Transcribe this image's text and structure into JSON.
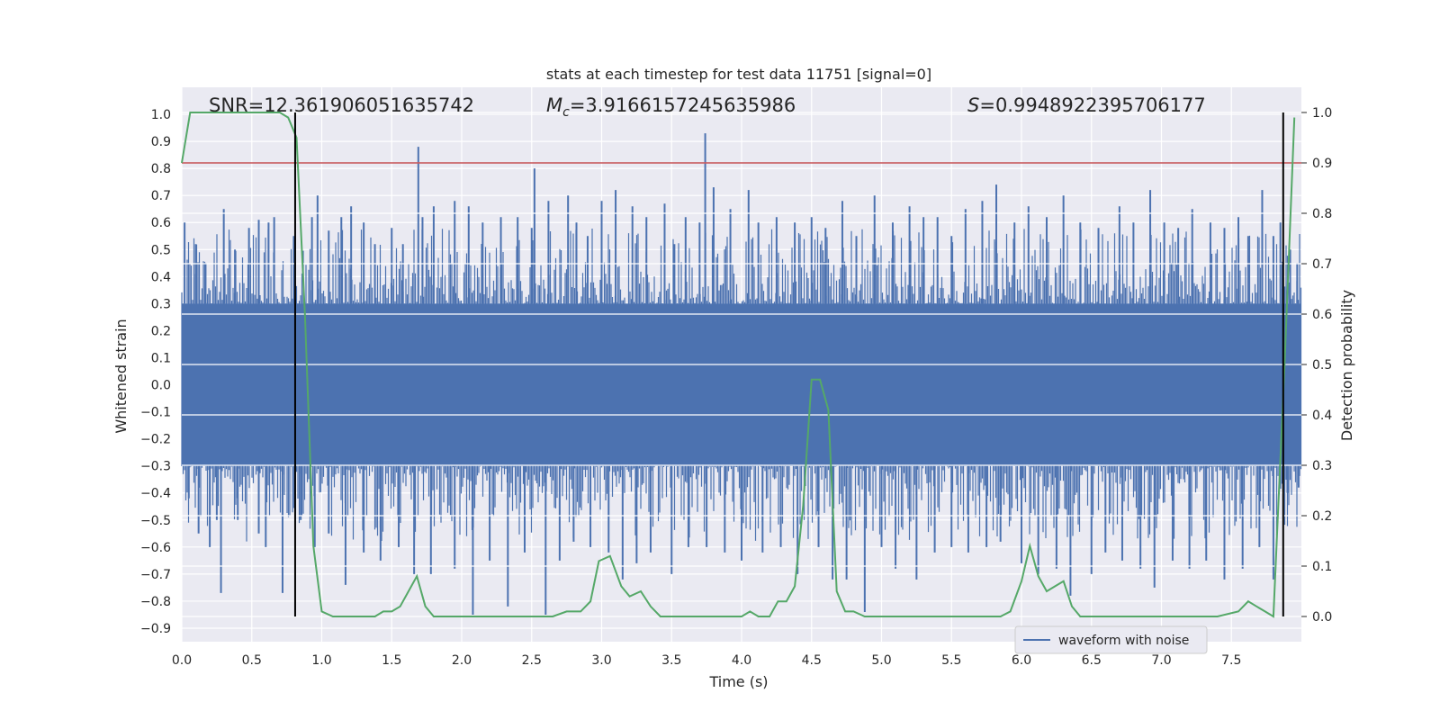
{
  "chart_data": {
    "type": "line",
    "title": "stats at each timestep for test data 11751 [signal=0]",
    "xlabel": "Time (s)",
    "ylabel": "Whitened strain",
    "ylabel_right": "Detection probability",
    "xlim": [
      0.0,
      8.0
    ],
    "ylim": [
      -0.95,
      1.1
    ],
    "ylim_right": [
      -0.05,
      1.05
    ],
    "x_ticks": [
      "0.0",
      "0.5",
      "1.0",
      "1.5",
      "2.0",
      "2.5",
      "3.0",
      "3.5",
      "4.0",
      "4.5",
      "5.0",
      "5.5",
      "6.0",
      "6.5",
      "7.0",
      "7.5"
    ],
    "y_ticks": [
      "1.0",
      "0.9",
      "0.8",
      "0.7",
      "0.6",
      "0.5",
      "0.4",
      "0.3",
      "0.2",
      "0.1",
      "0.0",
      "-0.1",
      "-0.2",
      "-0.3",
      "-0.4",
      "-0.5",
      "-0.6",
      "-0.7",
      "-0.8",
      "-0.9"
    ],
    "y_ticks_right": [
      "1.0",
      "0.9",
      "0.8",
      "0.7",
      "0.6",
      "0.5",
      "0.4",
      "0.3",
      "0.2",
      "0.1",
      "0.0"
    ],
    "annotations": {
      "snr": "SNR=12.361906051635742",
      "mc_symbol": "M",
      "mc_sub": "c",
      "mc_value": "=3.9166157245635986",
      "s_symbol": "S",
      "s_value": "=0.9948922395706177"
    },
    "legend": {
      "label": "waveform with noise",
      "placement": "lower right"
    },
    "threshold": {
      "value_right": 0.9,
      "color": "#c44e52"
    },
    "vertical_lines": [
      0.81,
      7.87
    ],
    "series": [
      {
        "name": "waveform with noise",
        "color": "#4c72b0",
        "axis": "left",
        "band": [
          -0.3,
          0.3
        ],
        "spikes_up": [
          [
            0.02,
            0.6
          ],
          [
            0.1,
            0.52
          ],
          [
            0.17,
            0.45
          ],
          [
            0.3,
            0.65
          ],
          [
            0.38,
            0.5
          ],
          [
            0.48,
            0.58
          ],
          [
            0.55,
            0.61
          ],
          [
            0.62,
            0.6
          ],
          [
            0.66,
            0.62
          ],
          [
            0.8,
            0.55
          ],
          [
            0.93,
            0.62
          ],
          [
            0.97,
            0.7
          ],
          [
            1.05,
            0.57
          ],
          [
            1.14,
            0.62
          ],
          [
            1.21,
            0.66
          ],
          [
            1.3,
            0.6
          ],
          [
            1.38,
            0.52
          ],
          [
            1.5,
            0.58
          ],
          [
            1.58,
            0.52
          ],
          [
            1.69,
            0.88
          ],
          [
            1.72,
            0.62
          ],
          [
            1.8,
            0.66
          ],
          [
            1.95,
            0.68
          ],
          [
            2.05,
            0.66
          ],
          [
            2.15,
            0.6
          ],
          [
            2.28,
            0.62
          ],
          [
            2.4,
            0.62
          ],
          [
            2.5,
            0.58
          ],
          [
            2.52,
            0.8
          ],
          [
            2.62,
            0.68
          ],
          [
            2.76,
            0.7
          ],
          [
            2.82,
            0.6
          ],
          [
            2.9,
            0.55
          ],
          [
            3.0,
            0.68
          ],
          [
            3.1,
            0.72
          ],
          [
            3.22,
            0.66
          ],
          [
            3.32,
            0.62
          ],
          [
            3.45,
            0.67
          ],
          [
            3.52,
            0.52
          ],
          [
            3.6,
            0.62
          ],
          [
            3.7,
            0.6
          ],
          [
            3.74,
            0.93
          ],
          [
            3.8,
            0.73
          ],
          [
            3.92,
            0.65
          ],
          [
            4.05,
            0.72
          ],
          [
            4.12,
            0.6
          ],
          [
            4.25,
            0.62
          ],
          [
            4.38,
            0.6
          ],
          [
            4.5,
            0.62
          ],
          [
            4.6,
            0.58
          ],
          [
            4.72,
            0.68
          ],
          [
            4.82,
            0.55
          ],
          [
            4.95,
            0.7
          ],
          [
            5.08,
            0.6
          ],
          [
            5.2,
            0.66
          ],
          [
            5.3,
            0.62
          ],
          [
            5.4,
            0.62
          ],
          [
            5.5,
            0.55
          ],
          [
            5.6,
            0.65
          ],
          [
            5.72,
            0.68
          ],
          [
            5.82,
            0.74
          ],
          [
            5.95,
            0.6
          ],
          [
            6.05,
            0.66
          ],
          [
            6.18,
            0.62
          ],
          [
            6.3,
            0.7
          ],
          [
            6.42,
            0.6
          ],
          [
            6.55,
            0.58
          ],
          [
            6.7,
            0.66
          ],
          [
            6.8,
            0.6
          ],
          [
            6.92,
            0.72
          ],
          [
            7.02,
            0.6
          ],
          [
            7.12,
            0.58
          ],
          [
            7.22,
            0.65
          ],
          [
            7.35,
            0.6
          ],
          [
            7.45,
            0.58
          ],
          [
            7.55,
            0.62
          ],
          [
            7.62,
            0.55
          ],
          [
            7.72,
            0.72
          ],
          [
            7.8,
            0.55
          ],
          [
            7.85,
            0.6
          ],
          [
            7.92,
            0.5
          ],
          [
            7.97,
            0.45
          ]
        ],
        "spikes_down": [
          [
            0.05,
            -0.42
          ],
          [
            0.12,
            -0.55
          ],
          [
            0.2,
            -0.6
          ],
          [
            0.25,
            -0.5
          ],
          [
            0.28,
            -0.77
          ],
          [
            0.4,
            -0.5
          ],
          [
            0.55,
            -0.55
          ],
          [
            0.6,
            -0.6
          ],
          [
            0.72,
            -0.77
          ],
          [
            0.85,
            -0.5
          ],
          [
            0.95,
            -0.6
          ],
          [
            1.05,
            -0.55
          ],
          [
            1.17,
            -0.74
          ],
          [
            1.3,
            -0.62
          ],
          [
            1.42,
            -0.65
          ],
          [
            1.55,
            -0.6
          ],
          [
            1.66,
            -0.7
          ],
          [
            1.78,
            -0.7
          ],
          [
            1.95,
            -0.68
          ],
          [
            2.08,
            -0.85
          ],
          [
            2.2,
            -0.65
          ],
          [
            2.33,
            -0.82
          ],
          [
            2.45,
            -0.62
          ],
          [
            2.6,
            -0.85
          ],
          [
            2.7,
            -0.65
          ],
          [
            2.8,
            -0.58
          ],
          [
            2.92,
            -0.6
          ],
          [
            3.05,
            -0.62
          ],
          [
            3.15,
            -0.72
          ],
          [
            3.25,
            -0.66
          ],
          [
            3.35,
            -0.62
          ],
          [
            3.5,
            -0.7
          ],
          [
            3.62,
            -0.6
          ],
          [
            3.75,
            -0.6
          ],
          [
            3.88,
            -0.62
          ],
          [
            4.0,
            -0.65
          ],
          [
            4.15,
            -0.62
          ],
          [
            4.28,
            -0.6
          ],
          [
            4.4,
            -0.7
          ],
          [
            4.55,
            -0.6
          ],
          [
            4.65,
            -0.72
          ],
          [
            4.75,
            -0.72
          ],
          [
            4.88,
            -0.84
          ],
          [
            5.0,
            -0.6
          ],
          [
            5.1,
            -0.68
          ],
          [
            5.25,
            -0.72
          ],
          [
            5.38,
            -0.62
          ],
          [
            5.5,
            -0.6
          ],
          [
            5.62,
            -0.62
          ],
          [
            5.75,
            -0.6
          ],
          [
            5.85,
            -0.58
          ],
          [
            6.0,
            -0.66
          ],
          [
            6.12,
            -0.7
          ],
          [
            6.25,
            -0.68
          ],
          [
            6.35,
            -0.78
          ],
          [
            6.5,
            -0.7
          ],
          [
            6.6,
            -0.62
          ],
          [
            6.72,
            -0.65
          ],
          [
            6.85,
            -0.68
          ],
          [
            6.95,
            -0.75
          ],
          [
            7.08,
            -0.65
          ],
          [
            7.2,
            -0.68
          ],
          [
            7.32,
            -0.65
          ],
          [
            7.45,
            -0.72
          ],
          [
            7.58,
            -0.68
          ],
          [
            7.7,
            -0.6
          ],
          [
            7.8,
            -0.72
          ],
          [
            7.9,
            -0.4
          ],
          [
            7.98,
            -0.38
          ]
        ]
      },
      {
        "name": "detection probability",
        "color": "#55a868",
        "axis": "right",
        "x": [
          0.0,
          0.06,
          0.12,
          0.2,
          0.3,
          0.4,
          0.5,
          0.6,
          0.7,
          0.76,
          0.82,
          0.88,
          0.94,
          1.0,
          1.08,
          1.15,
          1.2,
          1.3,
          1.38,
          1.44,
          1.5,
          1.56,
          1.62,
          1.68,
          1.74,
          1.8,
          1.88,
          1.95,
          2.05,
          2.15,
          2.25,
          2.35,
          2.45,
          2.55,
          2.65,
          2.75,
          2.85,
          2.92,
          2.98,
          3.06,
          3.14,
          3.2,
          3.28,
          3.35,
          3.42,
          3.5,
          3.6,
          3.7,
          3.8,
          3.9,
          4.0,
          4.06,
          4.12,
          4.2,
          4.26,
          4.32,
          4.38,
          4.44,
          4.5,
          4.56,
          4.62,
          4.68,
          4.74,
          4.8,
          4.88,
          4.95,
          5.05,
          5.2,
          5.4,
          5.6,
          5.75,
          5.85,
          5.92,
          6.0,
          6.06,
          6.12,
          6.18,
          6.24,
          6.3,
          6.36,
          6.42,
          6.5,
          6.6,
          6.7,
          6.8,
          7.0,
          7.2,
          7.4,
          7.55,
          7.62,
          7.68,
          7.74,
          7.8,
          7.88,
          7.95
        ],
        "y": [
          0.9,
          1.0,
          1.0,
          1.0,
          1.0,
          1.0,
          1.0,
          1.0,
          1.0,
          0.99,
          0.95,
          0.6,
          0.14,
          0.01,
          0.0,
          0.0,
          0.0,
          0.0,
          0.0,
          0.01,
          0.01,
          0.02,
          0.05,
          0.08,
          0.02,
          0.0,
          0.0,
          0.0,
          0.0,
          0.0,
          0.0,
          0.0,
          0.0,
          0.0,
          0.0,
          0.01,
          0.01,
          0.03,
          0.11,
          0.12,
          0.06,
          0.04,
          0.05,
          0.02,
          0.0,
          0.0,
          0.0,
          0.0,
          0.0,
          0.0,
          0.0,
          0.01,
          0.0,
          0.0,
          0.03,
          0.03,
          0.06,
          0.22,
          0.47,
          0.47,
          0.41,
          0.05,
          0.01,
          0.01,
          0.0,
          0.0,
          0.0,
          0.0,
          0.0,
          0.0,
          0.0,
          0.0,
          0.01,
          0.07,
          0.14,
          0.08,
          0.05,
          0.06,
          0.07,
          0.02,
          0.0,
          0.0,
          0.0,
          0.0,
          0.0,
          0.0,
          0.0,
          0.0,
          0.01,
          0.03,
          0.02,
          0.01,
          0.0,
          0.5,
          0.99
        ]
      }
    ]
  }
}
